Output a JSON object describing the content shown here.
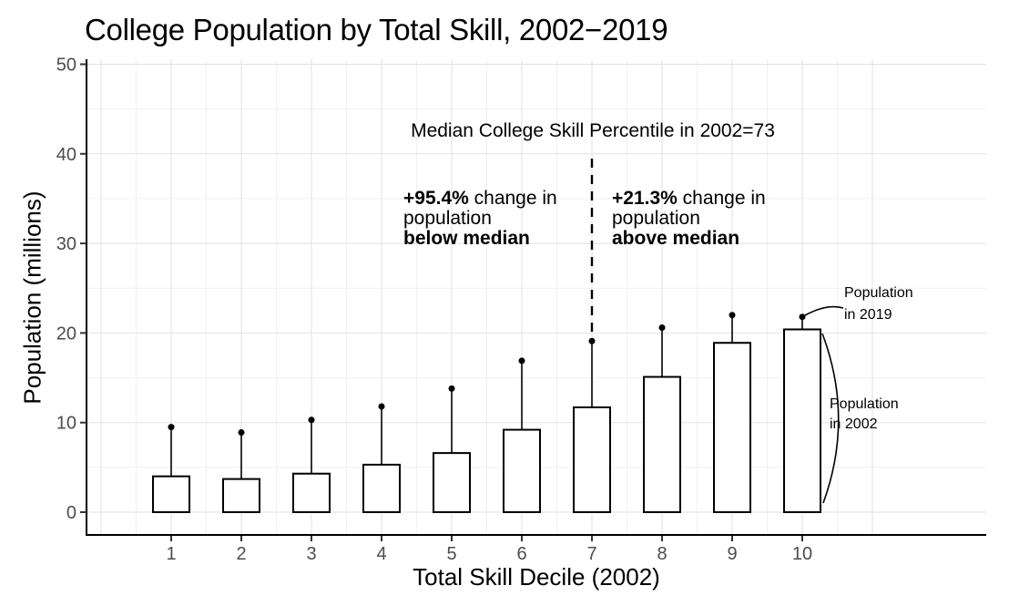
{
  "title": "College Population by Total Skill, 2002−2019",
  "chart_data": {
    "type": "bar",
    "title": "College Population by Total Skill, 2002−2019",
    "xlabel": "Total Skill Decile (2002)",
    "ylabel": "Population (millions)",
    "categories": [
      1,
      2,
      3,
      4,
      5,
      6,
      7,
      8,
      9,
      10
    ],
    "series": [
      {
        "name": "Population in 2002",
        "style": "bar",
        "values": [
          4.0,
          3.7,
          4.3,
          5.3,
          6.6,
          9.2,
          11.7,
          15.1,
          18.9,
          20.4
        ]
      },
      {
        "name": "Population in 2019",
        "style": "point",
        "values": [
          9.5,
          8.9,
          10.3,
          11.8,
          13.8,
          16.9,
          19.1,
          20.6,
          22.0,
          21.8
        ]
      }
    ],
    "ylim": [
      0,
      50
    ],
    "yticks": [
      0,
      10,
      20,
      30,
      40,
      50
    ],
    "grid": true,
    "legend_position": "none",
    "median_line_x": 7,
    "colors": {
      "bar_fill": "#ffffff",
      "stroke": "#000000",
      "axis_line": "#000000",
      "grid_major": "#e2e2e2",
      "grid_minor": "#f1f1f1",
      "tick_label": "#4d4d4d"
    },
    "annotations": {
      "median_note": "Median College Skill Percentile in 2002=73",
      "below": {
        "pct": "+95.4%",
        "rest": " change in",
        "line2": "population",
        "line3": "below median"
      },
      "above": {
        "pct": "+21.3%",
        "rest": " change in",
        "line2": "population",
        "line3": "above median"
      },
      "label_2019": {
        "line1": "Population",
        "line2": "in 2019"
      },
      "label_2002": {
        "line1": "Population",
        "line2": "in 2002"
      }
    }
  }
}
